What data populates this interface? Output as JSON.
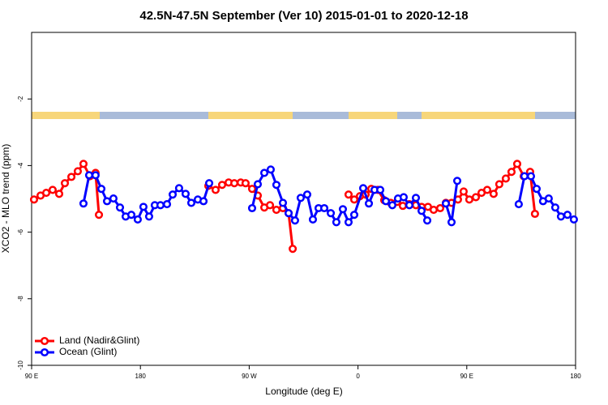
{
  "chart_data": {
    "type": "line",
    "title": "42.5N-47.5N September (Ver 10)   2015-01-01 to 2020-12-18",
    "x_label": "Longitude (deg E)",
    "y_label": "XCO2 - MLO trend (ppm)",
    "xlim": [
      90,
      540
    ],
    "xticks": [
      {
        "value": 90,
        "label": "90 E"
      },
      {
        "value": 180,
        "label": "180"
      },
      {
        "value": 270,
        "label": "90 W"
      },
      {
        "value": 360,
        "label": "0"
      },
      {
        "value": 450,
        "label": "90 E"
      },
      {
        "value": 540,
        "label": "180"
      }
    ],
    "ylim": [
      -10,
      0
    ],
    "yticks": [
      -10,
      -8,
      -6,
      -4,
      -2
    ],
    "legend": "bottom-left",
    "series": [
      {
        "name": "Land (Nadir&Glint)",
        "color": "#ff0000",
        "x": [
          92.0,
          97.4,
          102.1,
          107.4,
          112.8,
          117.5,
          122.9,
          128.2,
          132.9,
          138.2,
          142.9,
          145.7,
          null,
          236.2,
          242.2,
          247.6,
          253.0,
          257.7,
          263.0,
          267.0,
          272.4,
          277.1,
          282.5,
          287.2,
          292.5,
          297.9,
          302.6,
          306.0,
          null,
          352.2,
          356.9,
          361.6,
          366.3,
          371.0,
          376.4,
          381.7,
          387.1,
          392.4,
          397.1,
          402.5,
          407.9,
          412.6,
          417.9,
          422.6,
          428.0,
          432.7,
          437.4,
          442.7,
          447.4,
          452.1,
          457.5,
          462.2,
          466.9,
          472.2,
          476.9,
          482.3,
          487.0,
          491.7,
          497.1,
          502.4,
          506.4
        ],
        "values": [
          -5.02,
          -4.9,
          -4.82,
          -4.73,
          -4.85,
          -4.53,
          -4.34,
          -4.17,
          -3.95,
          -4.32,
          -4.22,
          -5.48,
          null,
          -4.61,
          -4.73,
          -4.58,
          -4.51,
          -4.53,
          -4.51,
          -4.53,
          -4.7,
          -4.9,
          -5.26,
          -5.19,
          -5.33,
          -5.28,
          -5.43,
          -6.5,
          null,
          -4.87,
          -5.02,
          -4.92,
          -4.87,
          -4.7,
          -4.73,
          -5.04,
          -5.12,
          -5.09,
          -5.21,
          -5.16,
          -5.19,
          -5.24,
          -5.24,
          -5.33,
          -5.28,
          -5.12,
          -5.12,
          -5.02,
          -4.78,
          -5.02,
          -4.95,
          -4.82,
          -4.73,
          -4.85,
          -4.56,
          -4.39,
          -4.19,
          -3.95,
          -4.32,
          -4.19,
          -5.45
        ]
      },
      {
        "name": "Ocean (Glint)",
        "color": "#0000ff",
        "x": [
          132.9,
          137.6,
          142.9,
          147.7,
          152.4,
          157.7,
          163.1,
          167.8,
          172.5,
          177.8,
          182.5,
          187.2,
          191.9,
          196.6,
          202.0,
          206.7,
          212.0,
          217.4,
          222.1,
          227.5,
          232.2,
          236.9,
          null,
          272.4,
          277.1,
          282.5,
          287.8,
          292.5,
          297.9,
          302.6,
          307.9,
          312.6,
          318.0,
          322.7,
          327.4,
          332.1,
          337.5,
          342.1,
          347.5,
          352.2,
          356.9,
          364.3,
          369.0,
          373.7,
          378.4,
          383.1,
          388.4,
          393.1,
          397.8,
          402.5,
          407.9,
          412.6,
          417.3,
          null,
          432.7,
          437.4,
          442.1,
          null,
          493.0,
          497.7,
          503.1,
          507.8,
          513.1,
          517.8,
          523.2,
          527.9,
          533.3,
          538.6
        ],
        "values": [
          -5.14,
          -4.29,
          -4.29,
          -4.7,
          -5.07,
          -4.99,
          -5.26,
          -5.53,
          -5.48,
          -5.62,
          -5.24,
          -5.53,
          -5.19,
          -5.19,
          -5.16,
          -4.87,
          -4.68,
          -4.85,
          -5.12,
          -5.02,
          -5.07,
          -4.53,
          null,
          -5.28,
          -4.56,
          -4.22,
          -4.12,
          -4.58,
          -5.12,
          -5.43,
          -5.65,
          -4.97,
          -4.87,
          -5.62,
          -5.28,
          -5.28,
          -5.43,
          -5.7,
          -5.31,
          -5.7,
          -5.48,
          -4.68,
          -5.14,
          -4.73,
          -4.73,
          -5.07,
          -5.19,
          -4.99,
          -4.95,
          -5.19,
          -4.97,
          -5.36,
          -5.65,
          null,
          -5.14,
          -5.7,
          -4.46,
          null,
          -5.16,
          -4.32,
          -4.32,
          -4.7,
          -5.07,
          -4.99,
          -5.26,
          -5.53,
          -5.48,
          -5.62
        ]
      }
    ]
  }
}
